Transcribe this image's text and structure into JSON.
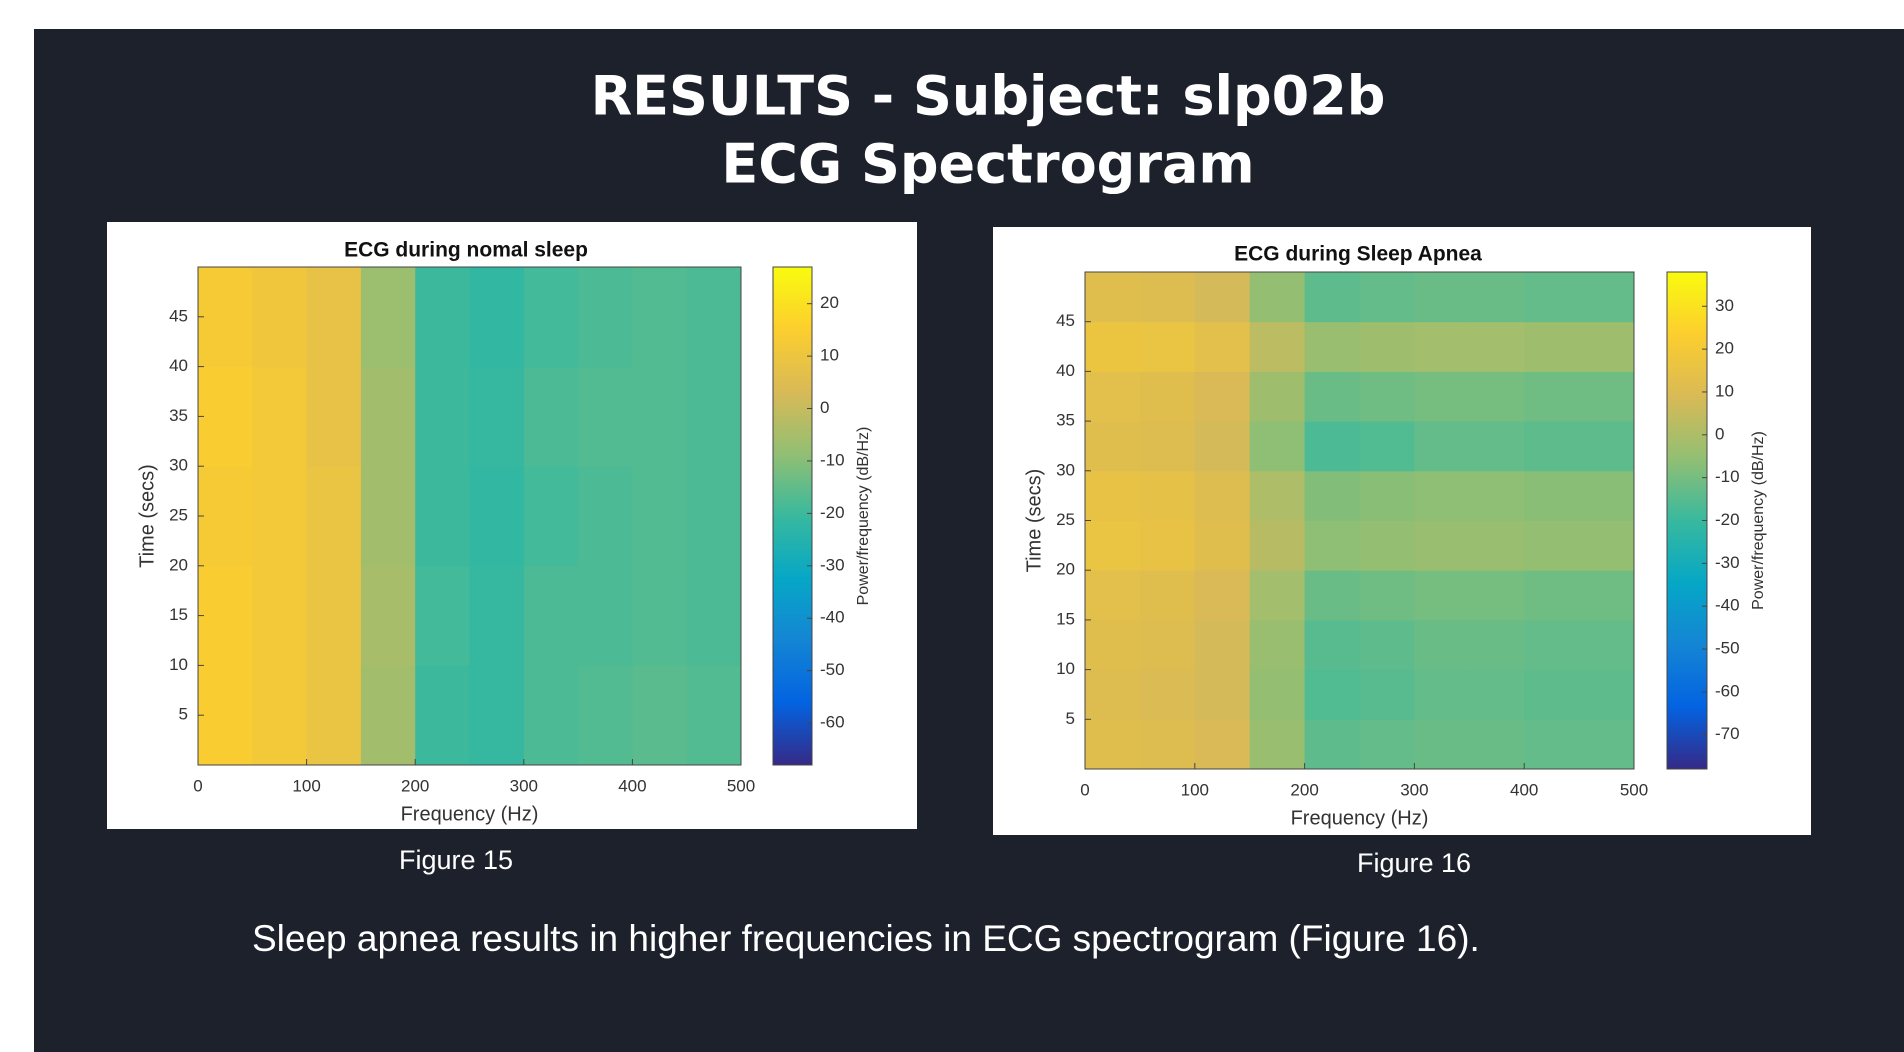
{
  "slide": {
    "title": [
      "RESULTS - Subject: slp02b",
      "ECG Spectrogram"
    ],
    "captions": [
      "Figure 15",
      "Figure 16"
    ],
    "note": "Sleep apnea results in higher frequencies in ECG spectrogram (Figure 16)."
  },
  "chart_data": [
    {
      "type": "heatmap",
      "title": "ECG during nomal sleep",
      "xlabel": "Frequency (Hz)",
      "ylabel": "Time (secs)",
      "colorbar_label": "Power/frequency (dB/Hz)",
      "colormap": "parula",
      "x_edges": [
        0,
        50,
        100,
        150,
        200,
        250,
        300,
        350,
        400,
        450,
        500
      ],
      "y_edges": [
        0,
        10,
        20,
        30,
        40,
        50
      ],
      "values": [
        [
          14,
          12,
          9,
          -6,
          -20,
          -21,
          -18,
          -17,
          -16,
          -17
        ],
        [
          14,
          12,
          9,
          -5,
          -19,
          -21,
          -18,
          -18,
          -17,
          -18
        ],
        [
          13,
          12,
          9,
          -6,
          -20,
          -22,
          -19,
          -18,
          -17,
          -18
        ],
        [
          14,
          12,
          8,
          -6,
          -20,
          -21,
          -18,
          -17,
          -17,
          -18
        ],
        [
          13,
          11,
          8,
          -7,
          -20,
          -22,
          -19,
          -18,
          -17,
          -18
        ]
      ],
      "xlim": [
        0,
        500
      ],
      "ylim": [
        0,
        50
      ],
      "xticks": [
        0,
        100,
        200,
        300,
        400,
        500
      ],
      "yticks": [
        5,
        10,
        15,
        20,
        25,
        30,
        35,
        40,
        45
      ],
      "clim": [
        -68,
        27
      ],
      "cticks": [
        -60,
        -50,
        -40,
        -30,
        -20,
        -10,
        0,
        10,
        20
      ]
    },
    {
      "type": "heatmap",
      "title": "ECG during Sleep Apnea",
      "xlabel": "Frequency (Hz)",
      "ylabel": "Time (secs)",
      "colorbar_label": "Power/frequency (dB/Hz)",
      "colormap": "parula",
      "x_edges": [
        0,
        50,
        100,
        150,
        200,
        250,
        300,
        350,
        400,
        450,
        500
      ],
      "y_edges": [
        0,
        5,
        10,
        15,
        20,
        25,
        30,
        35,
        40,
        45,
        50
      ],
      "values": [
        [
          12,
          11,
          9,
          -4,
          -14,
          -13,
          -12,
          -12,
          -13,
          -13
        ],
        [
          11,
          10,
          8,
          -5,
          -16,
          -15,
          -13,
          -13,
          -14,
          -14
        ],
        [
          12,
          11,
          8,
          -4,
          -15,
          -14,
          -12,
          -12,
          -13,
          -13
        ],
        [
          13,
          12,
          9,
          -2,
          -12,
          -11,
          -10,
          -10,
          -11,
          -11
        ],
        [
          16,
          15,
          12,
          2,
          -6,
          -5,
          -4,
          -4,
          -5,
          -5
        ],
        [
          15,
          14,
          11,
          0,
          -8,
          -7,
          -6,
          -6,
          -7,
          -7
        ],
        [
          12,
          11,
          8,
          -6,
          -17,
          -16,
          -13,
          -13,
          -14,
          -14
        ],
        [
          13,
          12,
          9,
          -3,
          -12,
          -11,
          -10,
          -10,
          -11,
          -11
        ],
        [
          17,
          16,
          13,
          3,
          -4,
          -3,
          -2,
          -2,
          -3,
          -3
        ],
        [
          12,
          11,
          8,
          -5,
          -14,
          -13,
          -12,
          -12,
          -13,
          -13
        ]
      ],
      "xlim": [
        0,
        500
      ],
      "ylim": [
        0,
        50
      ],
      "xticks": [
        0,
        100,
        200,
        300,
        400,
        500
      ],
      "yticks": [
        5,
        10,
        15,
        20,
        25,
        30,
        35,
        40,
        45
      ],
      "clim": [
        -78,
        38
      ],
      "cticks": [
        -70,
        -60,
        -50,
        -40,
        -30,
        -20,
        -10,
        0,
        10,
        20,
        30
      ]
    }
  ]
}
